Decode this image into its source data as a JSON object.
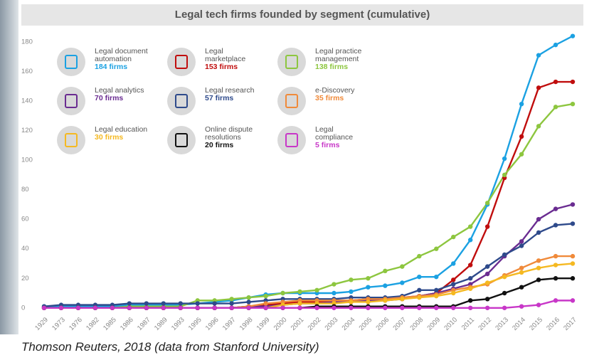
{
  "chart_data": {
    "type": "line",
    "title": "Legal tech firms founded by segment (cumulative)",
    "source": "Thomson Reuters, 2018 (data from Stanford University)",
    "categories": [
      "1929",
      "1973",
      "1976",
      "1982",
      "1985",
      "1986",
      "1987",
      "1989",
      "1993",
      "1995",
      "1996",
      "1997",
      "1998",
      "1999",
      "2000",
      "2001",
      "2002",
      "2003",
      "2004",
      "2005",
      "2006",
      "2007",
      "2008",
      "2009",
      "2010",
      "2011",
      "2012",
      "2013",
      "2014",
      "2015",
      "2016",
      "2017"
    ],
    "ylim": [
      -3,
      186
    ],
    "yticks": [
      0,
      20,
      40,
      60,
      80,
      100,
      120,
      140,
      160,
      180
    ],
    "grid": false,
    "series": [
      {
        "name": "Legal document automation",
        "count_label": "184 firms",
        "color": "#1ba1e2",
        "values": [
          1,
          1,
          1,
          1,
          1,
          2,
          2,
          2,
          2,
          3,
          4,
          5,
          7,
          9,
          10,
          10,
          10,
          10,
          11,
          14,
          15,
          17,
          21,
          21,
          30,
          46,
          70,
          101,
          138,
          171,
          178,
          184
        ]
      },
      {
        "name": "Legal marketplace",
        "count_label": "153 firms",
        "color": "#c00d0d",
        "values": [
          0,
          0,
          0,
          0,
          0,
          0,
          0,
          0,
          0,
          0,
          0,
          0,
          1,
          2,
          3,
          4,
          4,
          5,
          5,
          6,
          6,
          7,
          8,
          10,
          19,
          29,
          55,
          88,
          116,
          149,
          153,
          153
        ]
      },
      {
        "name": "Legal practice management",
        "count_label": "138 firms",
        "color": "#8dc63f",
        "values": [
          0,
          0,
          0,
          0,
          0,
          1,
          1,
          1,
          1,
          5,
          5,
          6,
          7,
          8,
          10,
          11,
          12,
          16,
          19,
          20,
          25,
          28,
          35,
          40,
          48,
          55,
          71,
          90,
          104,
          123,
          136,
          138
        ]
      },
      {
        "name": "Legal analytics",
        "count_label": "70 firms",
        "color": "#6a2c91",
        "values": [
          0,
          0,
          0,
          0,
          0,
          0,
          0,
          0,
          0,
          0,
          0,
          0,
          1,
          1,
          2,
          3,
          3,
          4,
          4,
          5,
          5,
          6,
          8,
          10,
          13,
          16,
          23,
          35,
          45,
          60,
          67,
          70
        ]
      },
      {
        "name": "Legal research",
        "count_label": "57 firms",
        "color": "#2e4a8b",
        "values": [
          1,
          2,
          2,
          2,
          2,
          3,
          3,
          3,
          3,
          3,
          3,
          3,
          4,
          5,
          6,
          6,
          6,
          6,
          7,
          7,
          7,
          8,
          12,
          12,
          16,
          20,
          28,
          36,
          42,
          51,
          56,
          57
        ]
      },
      {
        "name": "e-Discovery",
        "count_label": "35 firms",
        "color": "#f08a3a",
        "values": [
          0,
          0,
          0,
          0,
          0,
          0,
          0,
          0,
          0,
          0,
          0,
          0,
          1,
          3,
          4,
          5,
          5,
          5,
          5,
          6,
          6,
          7,
          8,
          9,
          12,
          14,
          16,
          22,
          27,
          32,
          35,
          35
        ]
      },
      {
        "name": "Legal education",
        "count_label": "30 firms",
        "color": "#f5b921",
        "values": [
          0,
          0,
          0,
          0,
          0,
          0,
          0,
          0,
          0,
          0,
          0,
          0,
          0,
          0,
          2,
          3,
          3,
          3,
          4,
          4,
          5,
          6,
          7,
          8,
          10,
          13,
          17,
          21,
          24,
          27,
          29,
          30
        ]
      },
      {
        "name": "Online dispute resolutions",
        "count_label": "20 firms",
        "color": "#111111",
        "values": [
          0,
          0,
          0,
          0,
          0,
          0,
          0,
          0,
          0,
          0,
          0,
          0,
          0,
          0,
          0,
          0,
          1,
          1,
          1,
          1,
          1,
          1,
          1,
          1,
          1,
          5,
          6,
          10,
          14,
          19,
          20,
          20
        ]
      },
      {
        "name": "Legal compliance",
        "count_label": "5 firms",
        "color": "#c837c8",
        "values": [
          0,
          0,
          0,
          0,
          0,
          0,
          0,
          0,
          0,
          0,
          0,
          0,
          0,
          0,
          0,
          0,
          0,
          0,
          0,
          0,
          0,
          0,
          0,
          0,
          0,
          0,
          0,
          0,
          1,
          2,
          5,
          5
        ]
      }
    ]
  }
}
